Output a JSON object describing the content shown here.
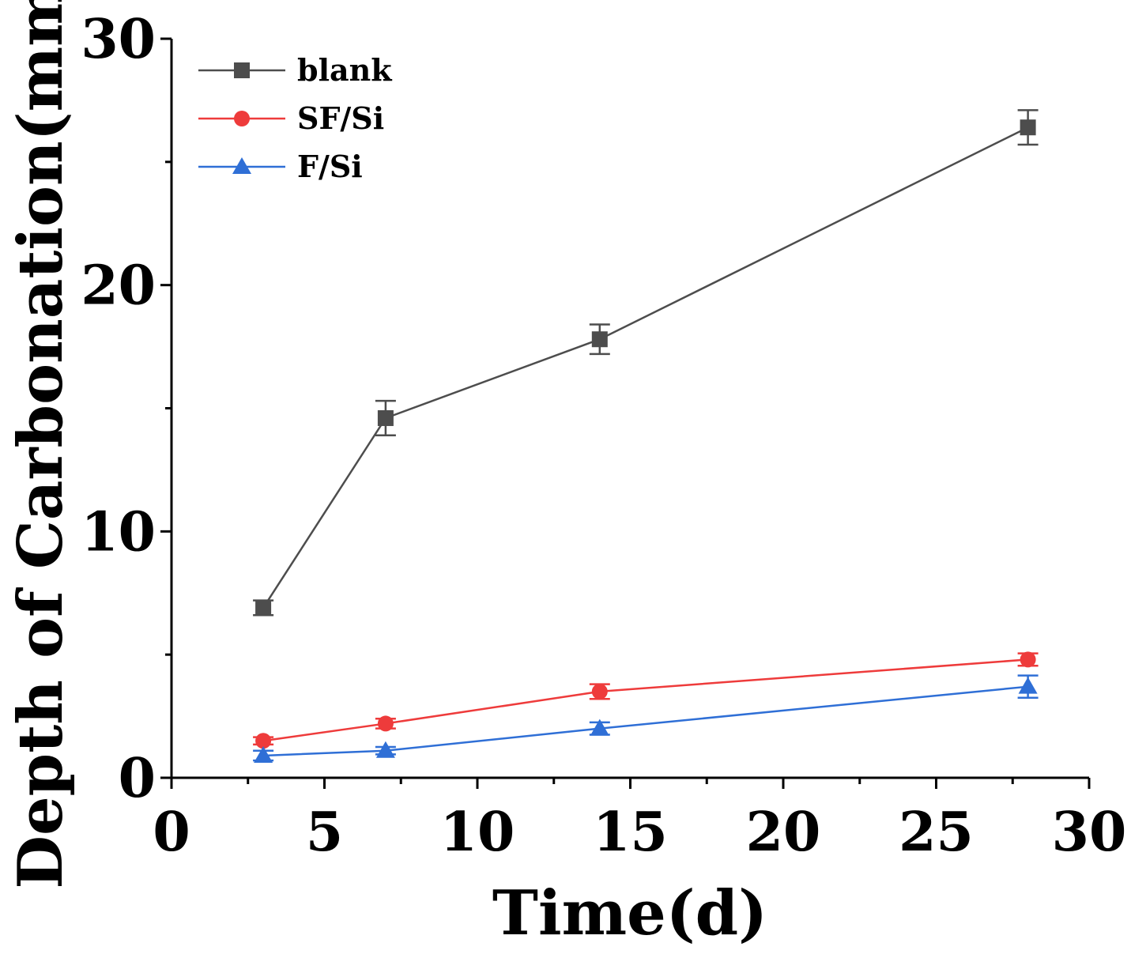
{
  "chart_data": {
    "type": "line",
    "title": "",
    "xlabel": "Time(d)",
    "ylabel": "Depth of Carbonation(mm)",
    "xlim": [
      0,
      30
    ],
    "ylim": [
      0,
      30
    ],
    "xticks": [
      0,
      5,
      10,
      15,
      20,
      25,
      30
    ],
    "yticks": [
      0,
      10,
      20,
      30
    ],
    "x": [
      3,
      7,
      14,
      28
    ],
    "legend_position": "top-left",
    "grid": false,
    "series": [
      {
        "name": "blank",
        "marker": "square",
        "color": "#4d4d4d",
        "values": [
          6.9,
          14.6,
          17.8,
          26.4
        ],
        "errors": [
          0.3,
          0.7,
          0.6,
          0.7
        ]
      },
      {
        "name": "SF/Si",
        "marker": "circle",
        "color": "#ee3b3b",
        "values": [
          1.5,
          2.2,
          3.5,
          4.8
        ],
        "errors": [
          0.15,
          0.2,
          0.3,
          0.25
        ]
      },
      {
        "name": "F/Si",
        "marker": "triangle",
        "color": "#2f6fd6",
        "values": [
          0.9,
          1.1,
          2.0,
          3.7
        ],
        "errors": [
          0.2,
          0.15,
          0.25,
          0.45
        ]
      }
    ]
  }
}
